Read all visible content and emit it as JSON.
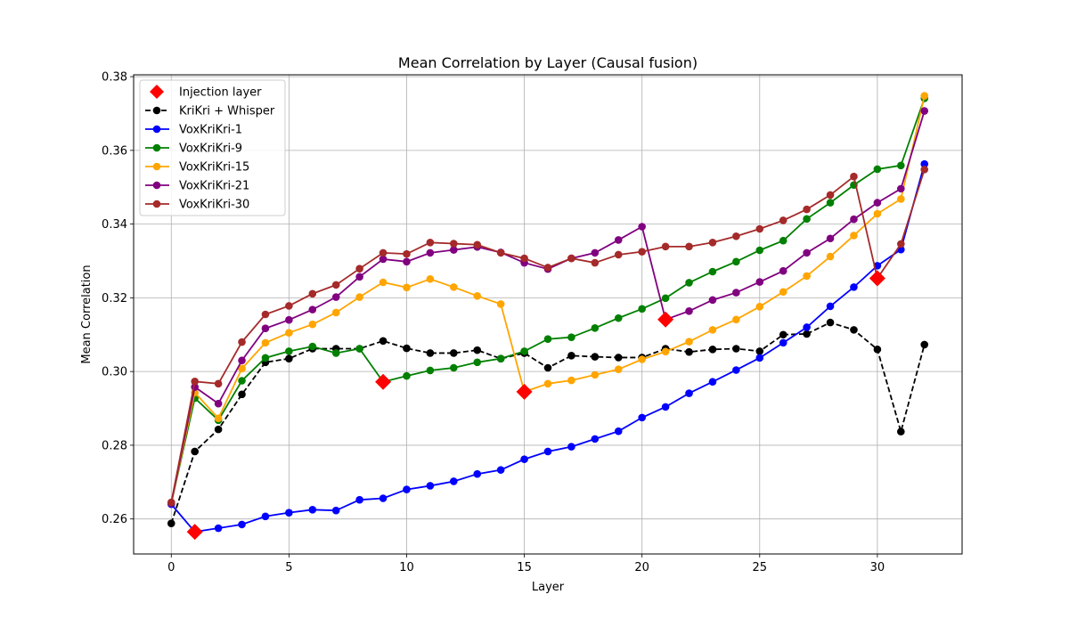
{
  "chart_data": {
    "type": "line",
    "title": "Mean Correlation by Layer (Causal fusion)",
    "xlabel": "Layer",
    "ylabel": "Mean Correlation",
    "xlim": [
      -1.6,
      33.6
    ],
    "ylim": [
      0.2505,
      0.3805
    ],
    "xticks": [
      0,
      5,
      10,
      15,
      20,
      25,
      30
    ],
    "yticks": [
      0.26,
      0.28,
      0.3,
      0.32,
      0.34,
      0.36,
      0.38
    ],
    "ytick_labels": [
      "0.26",
      "0.28",
      "0.30",
      "0.32",
      "0.34",
      "0.36",
      "0.38"
    ],
    "grid": true,
    "legend_position": "upper left",
    "x": [
      0,
      1,
      2,
      3,
      4,
      5,
      6,
      7,
      8,
      9,
      10,
      11,
      12,
      13,
      14,
      15,
      16,
      17,
      18,
      19,
      20,
      21,
      22,
      23,
      24,
      25,
      26,
      27,
      28,
      29,
      30,
      31,
      32
    ],
    "series": [
      {
        "name": "KriKri + Whisper",
        "color": "#000000",
        "dashed": true,
        "values": [
          0.2588,
          0.2783,
          0.2843,
          0.2938,
          0.3025,
          0.3035,
          0.3062,
          0.3062,
          0.3062,
          0.3083,
          0.3063,
          0.305,
          0.305,
          0.3058,
          0.3035,
          0.305,
          0.301,
          0.3043,
          0.304,
          0.3038,
          0.3038,
          0.3062,
          0.3053,
          0.306,
          0.3062,
          0.3055,
          0.31,
          0.3102,
          0.3133,
          0.3113,
          0.306,
          0.2837,
          0.3073
        ]
      },
      {
        "name": "VoxKriKri-1",
        "color": "#0000ff",
        "dashed": false,
        "values": [
          0.264,
          0.2565,
          0.2575,
          0.2585,
          0.2607,
          0.2617,
          0.2625,
          0.2623,
          0.2652,
          0.2656,
          0.268,
          0.269,
          0.2702,
          0.2722,
          0.2733,
          0.2762,
          0.2783,
          0.2796,
          0.2817,
          0.2838,
          0.2875,
          0.2904,
          0.2941,
          0.2972,
          0.3004,
          0.3037,
          0.3078,
          0.312,
          0.3177,
          0.3229,
          0.3287,
          0.3331,
          0.3563
        ]
      },
      {
        "name": "VoxKriKri-9",
        "color": "#008000",
        "dashed": false,
        "values": [
          0.2643,
          0.2928,
          0.2868,
          0.2975,
          0.3037,
          0.3055,
          0.3068,
          0.305,
          0.3062,
          0.2972,
          0.2988,
          0.3003,
          0.301,
          0.3025,
          0.3035,
          0.3055,
          0.3088,
          0.3093,
          0.3118,
          0.3145,
          0.317,
          0.3199,
          0.3241,
          0.3271,
          0.3298,
          0.3329,
          0.3355,
          0.3414,
          0.3458,
          0.3506,
          0.3549,
          0.3559,
          0.3741
        ]
      },
      {
        "name": "VoxKriKri-15",
        "color": "#ffa500",
        "dashed": false,
        "values": [
          0.2643,
          0.2943,
          0.2873,
          0.3008,
          0.3078,
          0.3105,
          0.3128,
          0.316,
          0.3202,
          0.3242,
          0.3228,
          0.3251,
          0.3229,
          0.3205,
          0.3183,
          0.2945,
          0.2967,
          0.2976,
          0.2991,
          0.3006,
          0.3033,
          0.3054,
          0.3081,
          0.3113,
          0.3141,
          0.3176,
          0.3216,
          0.3259,
          0.3312,
          0.3369,
          0.3428,
          0.3468,
          0.3748
        ]
      },
      {
        "name": "VoxKriKri-21",
        "color": "#800080",
        "dashed": false,
        "values": [
          0.2643,
          0.2958,
          0.2913,
          0.303,
          0.3117,
          0.314,
          0.3168,
          0.3202,
          0.3257,
          0.3305,
          0.3298,
          0.3322,
          0.333,
          0.3338,
          0.3323,
          0.3295,
          0.3278,
          0.3307,
          0.3322,
          0.3357,
          0.3393,
          0.3141,
          0.3164,
          0.3194,
          0.3214,
          0.3243,
          0.3273,
          0.3322,
          0.3361,
          0.3413,
          0.3458,
          0.3496,
          0.3707
        ]
      },
      {
        "name": "VoxKriKri-30",
        "color": "#a52a2a",
        "dashed": false,
        "values": [
          0.2645,
          0.2973,
          0.2967,
          0.308,
          0.3155,
          0.3178,
          0.3211,
          0.3235,
          0.3279,
          0.3322,
          0.3319,
          0.335,
          0.3347,
          0.3344,
          0.3322,
          0.3307,
          0.3282,
          0.3307,
          0.3295,
          0.3317,
          0.3325,
          0.3339,
          0.3339,
          0.335,
          0.3367,
          0.3387,
          0.341,
          0.344,
          0.3479,
          0.3529,
          0.3253,
          0.3346,
          0.3548
        ]
      }
    ],
    "injection_points": {
      "name": "Injection layer",
      "color": "#ff0000",
      "points": [
        {
          "x": 1,
          "y": 0.2565
        },
        {
          "x": 9,
          "y": 0.2972
        },
        {
          "x": 15,
          "y": 0.2945
        },
        {
          "x": 21,
          "y": 0.3141
        },
        {
          "x": 30,
          "y": 0.3253
        }
      ]
    }
  }
}
